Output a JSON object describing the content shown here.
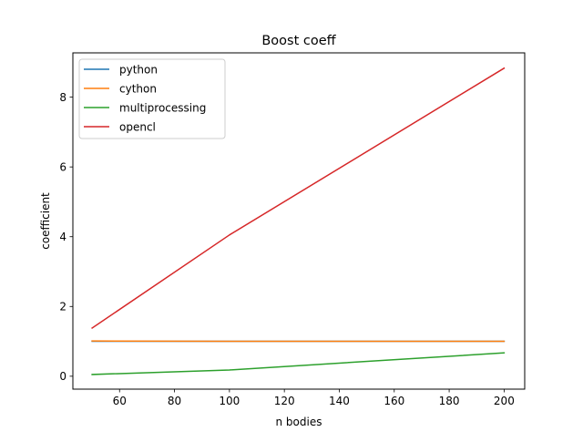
{
  "chart_data": {
    "type": "line",
    "title": "Boost coeff",
    "xlabel": "n bodies",
    "ylabel": "coefficient",
    "xlim": [
      43,
      207.5
    ],
    "ylim": [
      -0.37,
      9.27
    ],
    "xticks": [
      60,
      80,
      100,
      120,
      140,
      160,
      180,
      200
    ],
    "yticks": [
      0,
      2,
      4,
      6,
      8
    ],
    "x": [
      50,
      100,
      200
    ],
    "grid": false,
    "legend_position": "upper-left",
    "series": [
      {
        "name": "python",
        "color": "#1f77b4",
        "values": [
          1.0,
          1.0,
          1.0
        ]
      },
      {
        "name": "cython",
        "color": "#ff7f0e",
        "values": [
          1.01,
          1.0,
          1.0
        ]
      },
      {
        "name": "multiprocessing",
        "color": "#2ca02c",
        "values": [
          0.05,
          0.18,
          0.67
        ]
      },
      {
        "name": "opencl",
        "color": "#d62728",
        "values": [
          1.38,
          4.05,
          8.83
        ]
      }
    ]
  }
}
